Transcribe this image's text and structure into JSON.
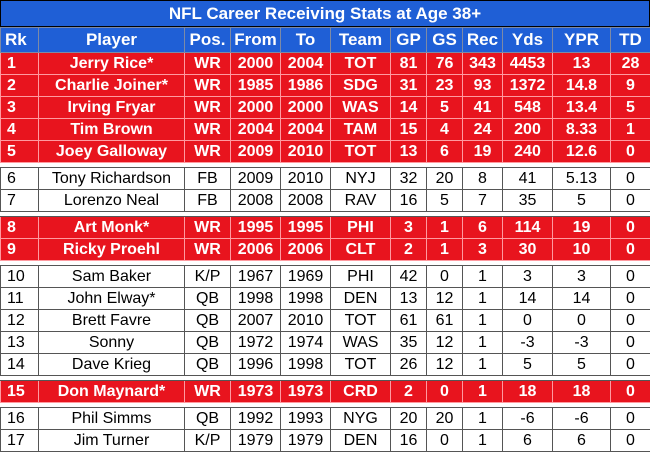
{
  "title": "NFL Career Receiving Stats at Age 38+",
  "headers": [
    "Rk",
    "Player",
    "Pos.",
    "From",
    "To",
    "Team",
    "GP",
    "GS",
    "Rec",
    "Yds",
    "YPR",
    "TD"
  ],
  "rows": [
    {
      "rk": "1",
      "player": "Jerry Rice*",
      "pos": "WR",
      "from": "2000",
      "to": "2004",
      "team": "TOT",
      "gp": "81",
      "gs": "76",
      "rec": "343",
      "yds": "4453",
      "ypr": "13",
      "td": "28",
      "hl": true
    },
    {
      "rk": "2",
      "player": "Charlie Joiner*",
      "pos": "WR",
      "from": "1985",
      "to": "1986",
      "team": "SDG",
      "gp": "31",
      "gs": "23",
      "rec": "93",
      "yds": "1372",
      "ypr": "14.8",
      "td": "9",
      "hl": true
    },
    {
      "rk": "3",
      "player": "Irving Fryar",
      "pos": "WR",
      "from": "2000",
      "to": "2000",
      "team": "WAS",
      "gp": "14",
      "gs": "5",
      "rec": "41",
      "yds": "548",
      "ypr": "13.4",
      "td": "5",
      "hl": true
    },
    {
      "rk": "4",
      "player": "Tim Brown",
      "pos": "WR",
      "from": "2004",
      "to": "2004",
      "team": "TAM",
      "gp": "15",
      "gs": "4",
      "rec": "24",
      "yds": "200",
      "ypr": "8.33",
      "td": "1",
      "hl": true
    },
    {
      "rk": "5",
      "player": "Joey Galloway",
      "pos": "WR",
      "from": "2009",
      "to": "2010",
      "team": "TOT",
      "gp": "13",
      "gs": "6",
      "rec": "19",
      "yds": "240",
      "ypr": "12.6",
      "td": "0",
      "hl": true
    },
    {
      "rk": "6",
      "player": "Tony Richardson",
      "pos": "FB",
      "from": "2009",
      "to": "2010",
      "team": "NYJ",
      "gp": "32",
      "gs": "20",
      "rec": "8",
      "yds": "41",
      "ypr": "5.13",
      "td": "0",
      "hl": false
    },
    {
      "rk": "7",
      "player": "Lorenzo Neal",
      "pos": "FB",
      "from": "2008",
      "to": "2008",
      "team": "RAV",
      "gp": "16",
      "gs": "5",
      "rec": "7",
      "yds": "35",
      "ypr": "5",
      "td": "0",
      "hl": false
    },
    {
      "rk": "8",
      "player": "Art Monk*",
      "pos": "WR",
      "from": "1995",
      "to": "1995",
      "team": "PHI",
      "gp": "3",
      "gs": "1",
      "rec": "6",
      "yds": "114",
      "ypr": "19",
      "td": "0",
      "hl": true
    },
    {
      "rk": "9",
      "player": "Ricky Proehl",
      "pos": "WR",
      "from": "2006",
      "to": "2006",
      "team": "CLT",
      "gp": "2",
      "gs": "1",
      "rec": "3",
      "yds": "30",
      "ypr": "10",
      "td": "0",
      "hl": true
    },
    {
      "rk": "10",
      "player": "Sam Baker",
      "pos": "K/P",
      "from": "1967",
      "to": "1969",
      "team": "PHI",
      "gp": "42",
      "gs": "0",
      "rec": "1",
      "yds": "3",
      "ypr": "3",
      "td": "0",
      "hl": false
    },
    {
      "rk": "11",
      "player": "John Elway*",
      "pos": "QB",
      "from": "1998",
      "to": "1998",
      "team": "DEN",
      "gp": "13",
      "gs": "12",
      "rec": "1",
      "yds": "14",
      "ypr": "14",
      "td": "0",
      "hl": false
    },
    {
      "rk": "12",
      "player": "Brett Favre",
      "pos": "QB",
      "from": "2007",
      "to": "2010",
      "team": "TOT",
      "gp": "61",
      "gs": "61",
      "rec": "1",
      "yds": "0",
      "ypr": "0",
      "td": "0",
      "hl": false
    },
    {
      "rk": "13",
      "player": "Sonny",
      "pos": "QB",
      "from": "1972",
      "to": "1974",
      "team": "WAS",
      "gp": "35",
      "gs": "12",
      "rec": "1",
      "yds": "-3",
      "ypr": "-3",
      "td": "0",
      "hl": false
    },
    {
      "rk": "14",
      "player": "Dave Krieg",
      "pos": "QB",
      "from": "1996",
      "to": "1998",
      "team": "TOT",
      "gp": "26",
      "gs": "12",
      "rec": "1",
      "yds": "5",
      "ypr": "5",
      "td": "0",
      "hl": false
    },
    {
      "rk": "15",
      "player": "Don Maynard*",
      "pos": "WR",
      "from": "1973",
      "to": "1973",
      "team": "CRD",
      "gp": "2",
      "gs": "0",
      "rec": "1",
      "yds": "18",
      "ypr": "18",
      "td": "0",
      "hl": true
    },
    {
      "rk": "16",
      "player": "Phil Simms",
      "pos": "QB",
      "from": "1992",
      "to": "1993",
      "team": "NYG",
      "gp": "20",
      "gs": "20",
      "rec": "1",
      "yds": "-6",
      "ypr": "-6",
      "td": "0",
      "hl": false
    },
    {
      "rk": "17",
      "player": "Jim Turner",
      "pos": "K/P",
      "from": "1979",
      "to": "1979",
      "team": "DEN",
      "gp": "16",
      "gs": "0",
      "rec": "1",
      "yds": "6",
      "ypr": "6",
      "td": "0",
      "hl": false
    }
  ]
}
